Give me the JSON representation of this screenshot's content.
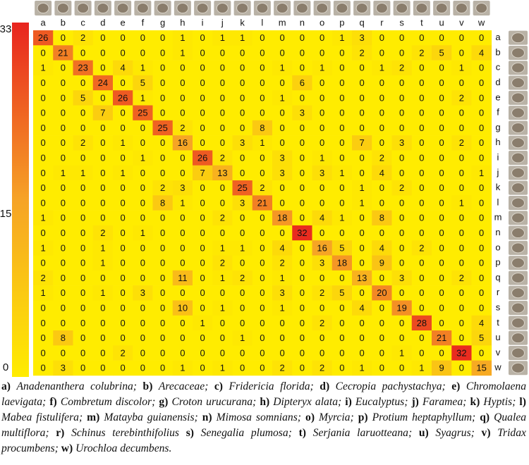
{
  "chart_data": {
    "type": "heatmap",
    "x_categories": [
      "a",
      "b",
      "c",
      "d",
      "e",
      "f",
      "g",
      "h",
      "i",
      "j",
      "k",
      "l",
      "m",
      "n",
      "o",
      "p",
      "q",
      "r",
      "s",
      "t",
      "u",
      "v",
      "w"
    ],
    "y_categories": [
      "a",
      "b",
      "c",
      "d",
      "e",
      "f",
      "g",
      "h",
      "i",
      "j",
      "k",
      "l",
      "m",
      "n",
      "o",
      "p",
      "q",
      "r",
      "s",
      "t",
      "u",
      "v",
      "w"
    ],
    "values": [
      [
        26,
        0,
        2,
        0,
        0,
        0,
        0,
        1,
        0,
        1,
        1,
        0,
        0,
        0,
        0,
        1,
        3,
        0,
        0,
        0,
        0,
        0,
        0
      ],
      [
        0,
        21,
        0,
        0,
        0,
        0,
        0,
        1,
        0,
        0,
        0,
        0,
        0,
        0,
        0,
        0,
        2,
        0,
        0,
        2,
        5,
        0,
        4
      ],
      [
        1,
        0,
        23,
        0,
        4,
        1,
        0,
        0,
        0,
        0,
        0,
        0,
        1,
        0,
        1,
        0,
        0,
        1,
        2,
        0,
        0,
        1,
        0
      ],
      [
        0,
        0,
        0,
        24,
        0,
        5,
        0,
        0,
        0,
        0,
        0,
        0,
        0,
        6,
        0,
        0,
        0,
        0,
        0,
        0,
        0,
        0,
        0
      ],
      [
        0,
        0,
        5,
        0,
        26,
        1,
        0,
        0,
        0,
        0,
        0,
        0,
        1,
        0,
        0,
        0,
        0,
        0,
        0,
        0,
        0,
        2,
        0
      ],
      [
        0,
        0,
        0,
        7,
        0,
        25,
        0,
        0,
        0,
        0,
        0,
        0,
        0,
        3,
        0,
        0,
        0,
        0,
        0,
        0,
        0,
        0,
        0
      ],
      [
        0,
        0,
        0,
        0,
        0,
        0,
        25,
        2,
        0,
        0,
        0,
        8,
        0,
        0,
        0,
        0,
        0,
        0,
        0,
        0,
        0,
        0,
        0
      ],
      [
        0,
        0,
        2,
        0,
        1,
        0,
        0,
        16,
        0,
        0,
        3,
        1,
        0,
        0,
        0,
        0,
        7,
        0,
        3,
        0,
        0,
        2,
        0
      ],
      [
        0,
        0,
        0,
        0,
        0,
        1,
        0,
        0,
        26,
        2,
        0,
        0,
        3,
        0,
        1,
        0,
        0,
        2,
        0,
        0,
        0,
        0,
        0
      ],
      [
        0,
        1,
        1,
        0,
        1,
        0,
        0,
        0,
        7,
        13,
        0,
        0,
        3,
        0,
        3,
        1,
        0,
        4,
        0,
        0,
        0,
        0,
        1
      ],
      [
        0,
        0,
        0,
        0,
        0,
        0,
        2,
        3,
        0,
        0,
        25,
        2,
        0,
        0,
        0,
        0,
        1,
        0,
        2,
        0,
        0,
        0,
        0
      ],
      [
        0,
        0,
        0,
        0,
        0,
        0,
        8,
        1,
        0,
        0,
        3,
        21,
        0,
        0,
        0,
        0,
        1,
        0,
        0,
        0,
        0,
        1,
        0
      ],
      [
        1,
        0,
        0,
        0,
        0,
        0,
        0,
        0,
        0,
        2,
        0,
        0,
        18,
        0,
        4,
        1,
        0,
        8,
        0,
        0,
        0,
        0,
        0
      ],
      [
        0,
        0,
        0,
        2,
        0,
        1,
        0,
        0,
        0,
        0,
        0,
        0,
        0,
        32,
        0,
        0,
        0,
        0,
        0,
        0,
        0,
        0,
        0
      ],
      [
        1,
        0,
        0,
        1,
        0,
        0,
        0,
        0,
        0,
        1,
        1,
        0,
        4,
        0,
        16,
        5,
        0,
        4,
        0,
        2,
        0,
        0,
        0
      ],
      [
        0,
        0,
        0,
        1,
        0,
        0,
        0,
        0,
        0,
        2,
        0,
        0,
        2,
        0,
        3,
        18,
        0,
        9,
        0,
        0,
        0,
        0,
        0
      ],
      [
        2,
        0,
        0,
        0,
        0,
        0,
        0,
        11,
        0,
        1,
        2,
        0,
        1,
        0,
        0,
        0,
        13,
        0,
        3,
        0,
        0,
        2,
        0
      ],
      [
        1,
        0,
        0,
        1,
        0,
        3,
        0,
        0,
        0,
        0,
        0,
        0,
        3,
        0,
        2,
        5,
        0,
        20,
        0,
        0,
        0,
        0,
        0
      ],
      [
        0,
        0,
        0,
        0,
        0,
        0,
        0,
        10,
        0,
        1,
        0,
        0,
        1,
        0,
        0,
        0,
        4,
        0,
        19,
        0,
        0,
        0,
        0
      ],
      [
        0,
        0,
        0,
        0,
        0,
        0,
        0,
        0,
        1,
        0,
        0,
        0,
        0,
        0,
        2,
        0,
        0,
        0,
        0,
        28,
        0,
        0,
        4
      ],
      [
        0,
        8,
        0,
        0,
        0,
        0,
        0,
        0,
        0,
        0,
        1,
        0,
        0,
        0,
        0,
        0,
        0,
        0,
        0,
        0,
        21,
        0,
        5
      ],
      [
        0,
        0,
        0,
        0,
        2,
        0,
        0,
        0,
        0,
        0,
        0,
        0,
        0,
        0,
        0,
        0,
        0,
        0,
        1,
        0,
        0,
        32,
        0
      ],
      [
        0,
        3,
        0,
        0,
        0,
        0,
        0,
        1,
        0,
        1,
        0,
        0,
        2,
        0,
        2,
        0,
        1,
        0,
        0,
        1,
        9,
        0,
        15
      ]
    ],
    "colorscale": [
      "#ffec00",
      "#f6a326",
      "#e8241f"
    ],
    "zlim": [
      0,
      33
    ],
    "zticks": [
      0,
      15,
      33
    ]
  },
  "caption": [
    {
      "label": "a)",
      "name": "Anadenanthera colubrina;"
    },
    {
      "label": "b)",
      "name": "Arecaceae;"
    },
    {
      "label": "c)",
      "name": "Fridericia florida;"
    },
    {
      "label": "d)",
      "name": "Cecropia pachystachya;"
    },
    {
      "label": "e)",
      "name": "Chromolaena laevigata;"
    },
    {
      "label": "f)",
      "name": "Combretum discolor;"
    },
    {
      "label": "g)",
      "name": "Croton urucurana;"
    },
    {
      "label": "h)",
      "name": "Dipteryx alata;"
    },
    {
      "label": "i)",
      "name": "Eucalyptus;"
    },
    {
      "label": "j)",
      "name": "Faramea;"
    },
    {
      "label": "k)",
      "name": "Hyptis;"
    },
    {
      "label": "l)",
      "name": "Mabea fistulifera;"
    },
    {
      "label": "m)",
      "name": "Matayba guianensis;"
    },
    {
      "label": "n)",
      "name": "Mimosa somnians;"
    },
    {
      "label": "o)",
      "name": "Myrcia;"
    },
    {
      "label": "p)",
      "name": "Protium heptaphyllum;"
    },
    {
      "label": "q)",
      "name": "Qualea multiflora;"
    },
    {
      "label": "r)",
      "name": "Schinus terebinthifolius"
    },
    {
      "label": "s)",
      "name": "Senegalia plumosa;"
    },
    {
      "label": "t)",
      "name": "Serjania laruotteana;"
    },
    {
      "label": "u)",
      "name": "Syagrus;"
    },
    {
      "label": "v)",
      "name": "Tridax procumbens;"
    },
    {
      "label": "w)",
      "name": "Urochloa decumbens."
    }
  ]
}
